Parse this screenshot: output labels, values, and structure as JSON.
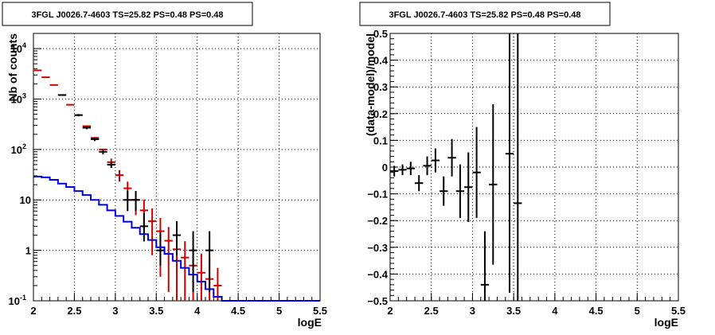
{
  "chart_data": [
    {
      "type": "step",
      "title": "3FGL J0026.7-4603 TS=25.82 PS=0.48 PS=0.48",
      "xlabel": "logE",
      "ylabel": "Nb of counts",
      "xlim": [
        2,
        5.5
      ],
      "ylim": [
        0.1,
        20000
      ],
      "yscale": "log",
      "grid": true,
      "x_ticks": [
        "2",
        "2.5",
        "3",
        "3.5",
        "4",
        "4.5",
        "5",
        "5.5"
      ],
      "y_ticks": [
        {
          "value": 0.1,
          "base": "10",
          "exp": "-1"
        },
        {
          "value": 1,
          "label": "1"
        },
        {
          "value": 10,
          "label": "10"
        },
        {
          "value": 100,
          "base": "10",
          "exp": "2"
        },
        {
          "value": 1000,
          "base": "10",
          "exp": "3"
        },
        {
          "value": 10000,
          "base": "10",
          "exp": "4"
        }
      ],
      "series": [
        {
          "color": "#cc0000",
          "marker": "cross",
          "x": [
            2.05,
            2.15,
            2.25,
            2.35,
            2.45,
            2.55,
            2.65,
            2.75,
            2.85,
            2.95,
            3.05,
            3.15,
            3.25,
            3.35,
            3.45,
            3.55,
            3.65,
            3.75,
            3.85,
            3.95,
            4.05,
            4.15,
            4.25
          ],
          "y": [
            3700,
            2700,
            1900,
            1200,
            770,
            480,
            290,
            170,
            100,
            56,
            31,
            17,
            10,
            6.2,
            3.8,
            2.4,
            1.55,
            1.05,
            0.72,
            0.5,
            0.36,
            0.27,
            0.2
          ],
          "err_low": [
            0,
            0,
            0,
            0,
            0,
            0,
            0,
            0,
            0,
            10,
            8,
            6,
            5,
            4,
            3,
            2.1,
            1.4,
            0.95,
            0.7,
            0.5,
            0.36,
            0.27,
            0.2
          ],
          "err_high": [
            0,
            0,
            0,
            0,
            0,
            0,
            0,
            0,
            0,
            10,
            8,
            6,
            5,
            4,
            3,
            2.0,
            1.35,
            1.0,
            0.8,
            0.6,
            0.5,
            0.4,
            0.25
          ]
        },
        {
          "color": "#000000",
          "marker": "cross",
          "x": [
            2.35,
            2.55,
            2.65,
            2.75,
            2.85,
            2.95,
            3.15,
            3.25,
            3.35,
            3.55,
            3.75,
            3.95,
            4.15
          ],
          "y": [
            1200,
            480,
            270,
            160,
            90,
            50,
            10,
            10,
            3,
            1,
            2,
            1,
            1
          ],
          "err_low": [
            40,
            25,
            18,
            13,
            10,
            7,
            4,
            4,
            1.5,
            0.5,
            1.2,
            0.85,
            0.85
          ],
          "err_high": [
            40,
            25,
            18,
            13,
            10,
            7,
            5,
            5,
            2.5,
            1.3,
            1.8,
            1.4,
            1.4
          ]
        },
        {
          "color": "#0000dd",
          "marker": "step",
          "x": [
            2.05,
            2.15,
            2.25,
            2.35,
            2.45,
            2.55,
            2.65,
            2.75,
            2.85,
            2.95,
            3.05,
            3.15,
            3.25,
            3.35,
            3.45,
            3.55,
            3.65,
            3.75,
            3.85,
            3.95,
            4.05,
            4.15,
            4.25,
            4.35,
            4.45,
            4.55,
            4.65,
            4.75,
            4.85,
            4.95,
            5.05,
            5.15,
            5.25,
            5.35,
            5.45
          ],
          "y": [
            29,
            28,
            25,
            21,
            18,
            15,
            12.5,
            10,
            8,
            6.2,
            4.8,
            3.7,
            2.8,
            2.1,
            1.6,
            1.15,
            0.85,
            0.62,
            0.45,
            0.33,
            0.24,
            0.17,
            0.12,
            0.1,
            0.1,
            0.1,
            0.1,
            0.1,
            0.1,
            0.1,
            0.1,
            0.1,
            0.1,
            0.1,
            0.1
          ]
        }
      ]
    },
    {
      "type": "scatter",
      "title": "3FGL J0026.7-4603 TS=25.82 PS=0.48 PS=0.48",
      "xlabel": "logE",
      "ylabel": "(data-model)/model",
      "xlim": [
        2,
        5.5
      ],
      "ylim": [
        -0.5,
        0.5
      ],
      "grid": true,
      "x_ticks": [
        "2",
        "2.5",
        "3",
        "3.5",
        "4",
        "4.5",
        "5",
        "5.5"
      ],
      "y_ticks": [
        "−0.5",
        "−0.4",
        "−0.3",
        "−0.2",
        "−0.1",
        "0",
        "0.1",
        "0.2",
        "0.3",
        "0.4",
        "0.5"
      ],
      "series": [
        {
          "color": "#000000",
          "marker": "cross",
          "x": [
            2.05,
            2.15,
            2.25,
            2.35,
            2.45,
            2.55,
            2.65,
            2.75,
            2.85,
            2.95,
            3.05,
            3.15,
            3.25,
            3.45,
            3.55
          ],
          "y": [
            -0.015,
            -0.01,
            -0.005,
            -0.06,
            0.005,
            0.025,
            -0.09,
            0.035,
            -0.09,
            -0.075,
            -0.02,
            -0.44,
            -0.065,
            0.05,
            -0.135
          ],
          "err_low": [
            0.02,
            0.02,
            0.025,
            0.03,
            0.035,
            0.045,
            0.055,
            0.07,
            0.1,
            0.13,
            0.17,
            0.2,
            0.3,
            0.52,
            0.8
          ],
          "err_high": [
            0.02,
            0.02,
            0.025,
            0.03,
            0.035,
            0.045,
            0.055,
            0.07,
            0.1,
            0.13,
            0.17,
            0.2,
            0.3,
            0.52,
            0.8
          ]
        }
      ]
    }
  ]
}
